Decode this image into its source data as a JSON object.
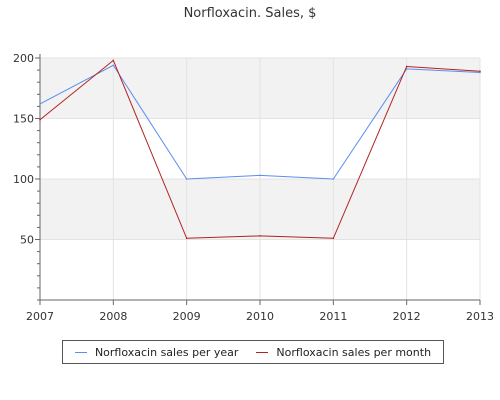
{
  "chart_data": {
    "type": "line",
    "title": "Norfloxacin. Sales, $",
    "xlabel": "",
    "ylabel": "",
    "x": [
      "2007",
      "2008",
      "2009",
      "2010",
      "2011",
      "2012",
      "2013"
    ],
    "ylim": [
      0,
      200
    ],
    "yticks": [
      50,
      100,
      150,
      200
    ],
    "series": [
      {
        "name": "Norfloxacin sales per year",
        "color": "#5b8def",
        "values": [
          162,
          194,
          100,
          103,
          100,
          191,
          188
        ]
      },
      {
        "name": "Norfloxacin sales per month",
        "color": "#b22222",
        "values": [
          149,
          198,
          51,
          53,
          51,
          193,
          189
        ]
      }
    ],
    "grid": true,
    "bands": "alternating grey horizontal bands",
    "legend": "bottom"
  }
}
